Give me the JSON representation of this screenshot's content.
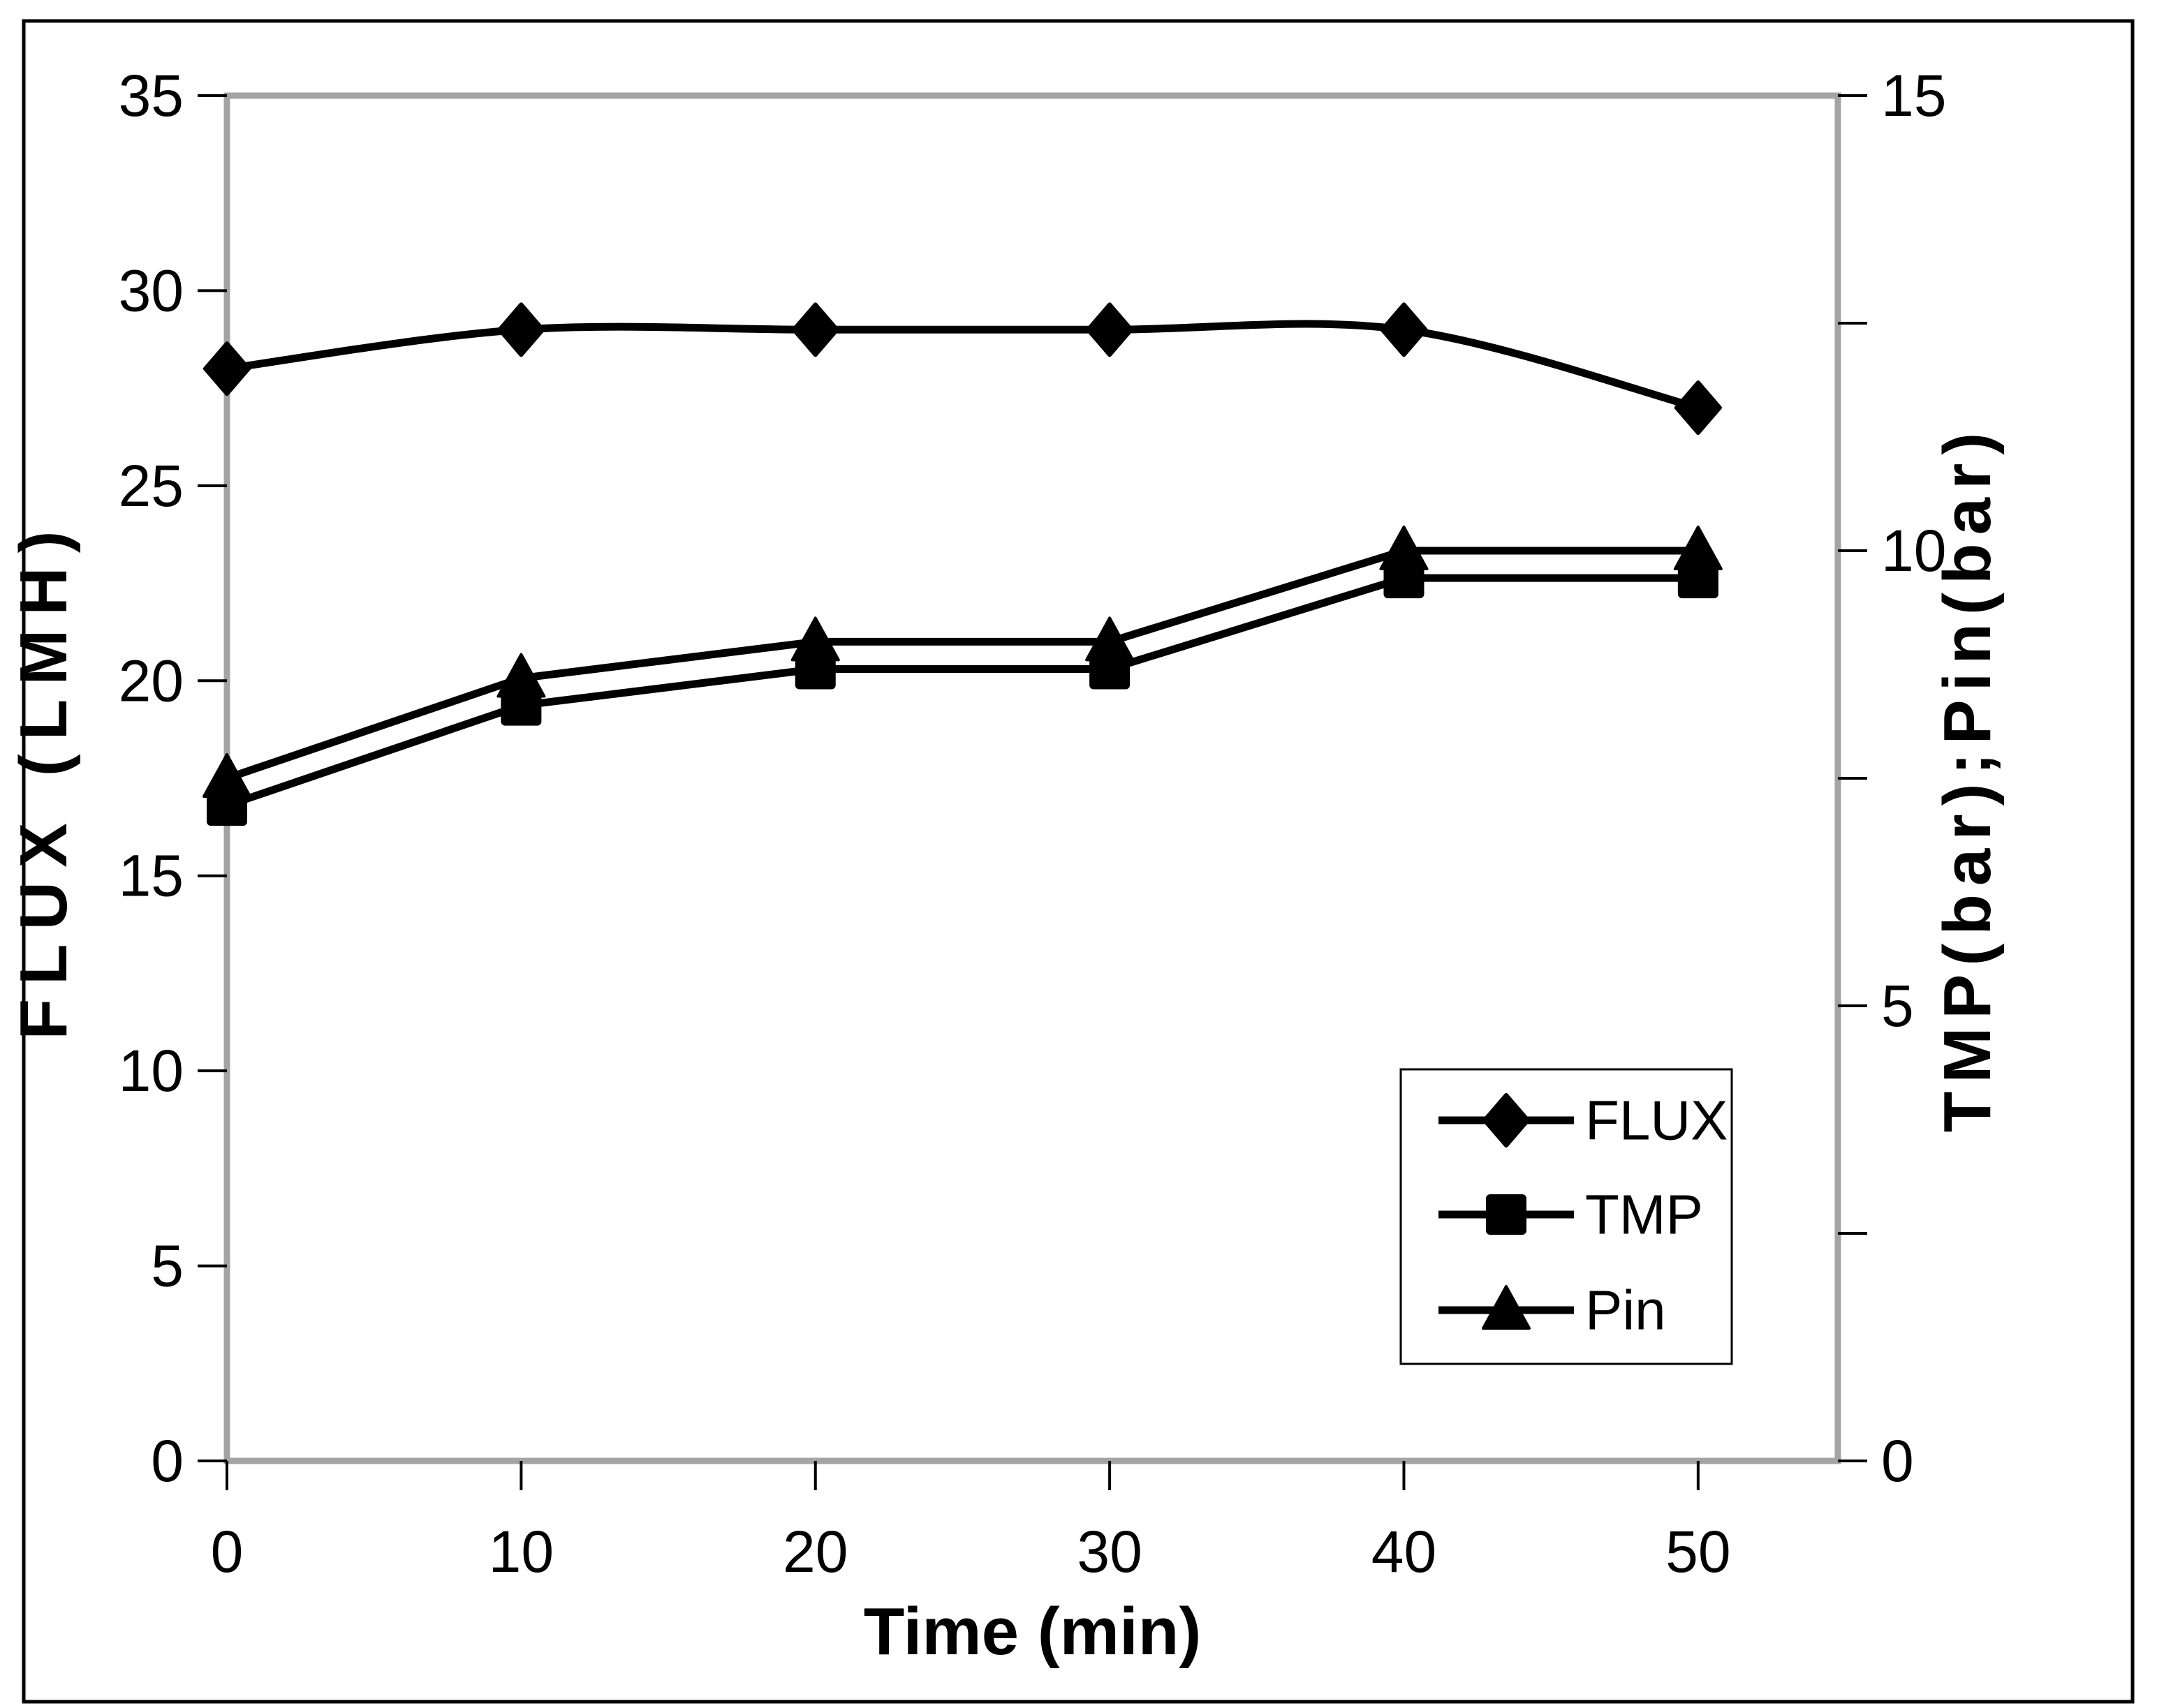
{
  "figure": {
    "background": "#ffffff",
    "border_color": "#000000"
  },
  "chart_data": {
    "type": "line",
    "title": "",
    "xlabel": "Time (min)",
    "ylabel_left": "FLUX (LMH)",
    "ylabel_right": "TMP(bar);Pin(bar)",
    "x": [
      0,
      10,
      20,
      30,
      40,
      50
    ],
    "x_ticks": [
      "0",
      "10",
      "20",
      "30",
      "40",
      "50"
    ],
    "y_left_ticks": [
      "0",
      "5",
      "10",
      "15",
      "20",
      "25",
      "30",
      "35"
    ],
    "y_right_ticks": [
      "0",
      "5",
      "10",
      "15"
    ],
    "ylim_left": [
      0,
      35
    ],
    "ylim_right": [
      0,
      15
    ],
    "xlim": [
      0,
      54.75
    ],
    "y_right_minor_step": 2.5,
    "grid": false,
    "legend_position": "inside-right",
    "series": [
      {
        "name": "FLUX",
        "axis": "left",
        "marker": "diamond",
        "smooth": true,
        "values": [
          28,
          29,
          29,
          29,
          29,
          27
        ]
      },
      {
        "name": "TMP",
        "axis": "right",
        "marker": "square",
        "smooth": false,
        "values": [
          7.2,
          8.3,
          8.7,
          8.7,
          9.7,
          9.7
        ]
      },
      {
        "name": "Pin",
        "axis": "right",
        "marker": "triangle",
        "smooth": false,
        "values": [
          7.5,
          8.6,
          9.0,
          9.0,
          10.0,
          10.0
        ]
      }
    ],
    "colors": {
      "series": "#000000",
      "axis_line": "#a3a3a3",
      "tick": "#000000",
      "text": "#000000",
      "legend_border": "#000000",
      "legend_bg": "#ffffff"
    }
  }
}
